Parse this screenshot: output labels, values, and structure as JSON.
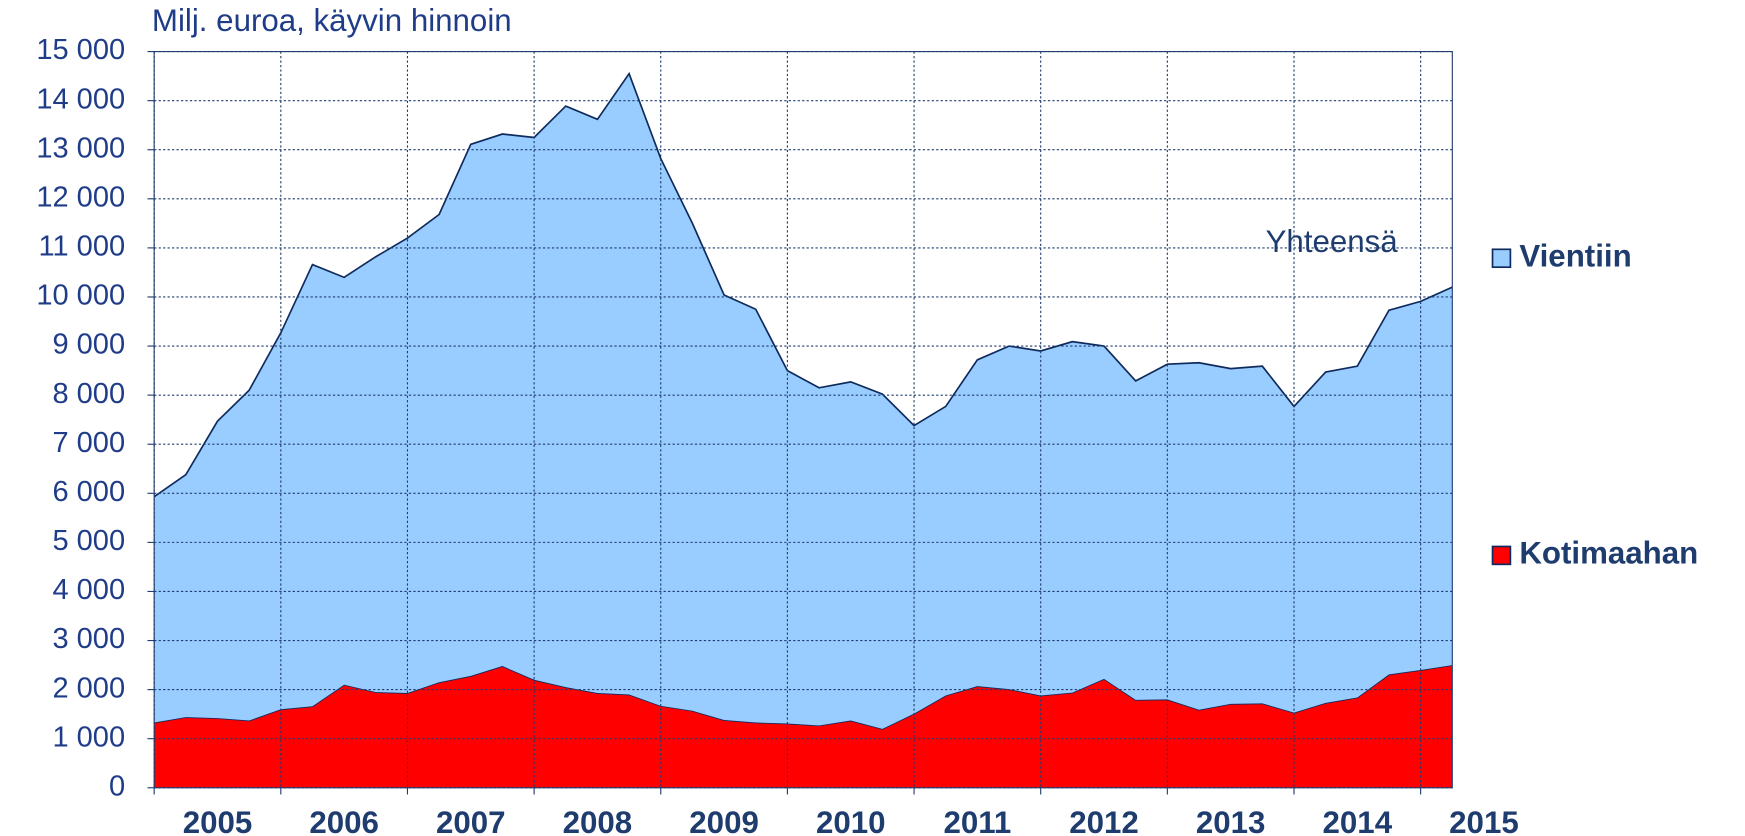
{
  "chart_data": {
    "type": "stacked_area",
    "y_axis_label": "Milj. euroa, käyvin hinnoin",
    "annotation": "Yhteensä",
    "x": [
      2005,
      2005.25,
      2005.5,
      2005.75,
      2006,
      2006.25,
      2006.5,
      2006.75,
      2007,
      2007.25,
      2007.5,
      2007.75,
      2008,
      2008.25,
      2008.5,
      2008.75,
      2009,
      2009.25,
      2009.5,
      2009.75,
      2010,
      2010.25,
      2010.5,
      2010.75,
      2011,
      2011.25,
      2011.5,
      2011.75,
      2012,
      2012.25,
      2012.5,
      2012.75,
      2013,
      2013.25,
      2013.5,
      2013.75,
      2014,
      2014.25,
      2014.5,
      2014.75,
      2015,
      2015.25
    ],
    "series": [
      {
        "name": "Kotimaahan",
        "color": "#ff0000",
        "values": [
          1330,
          1440,
          1420,
          1370,
          1600,
          1660,
          2100,
          1950,
          1930,
          2150,
          2280,
          2480,
          2200,
          2050,
          1930,
          1900,
          1670,
          1570,
          1380,
          1330,
          1310,
          1270,
          1370,
          1200,
          1510,
          1880,
          2070,
          2010,
          1880,
          1940,
          2220,
          1790,
          1800,
          1590,
          1710,
          1720,
          1530,
          1730,
          1840,
          2310,
          2400,
          2500
        ]
      },
      {
        "name": "Vientiin",
        "color": "#99ccff",
        "values": [
          4600,
          4940,
          6050,
          6730,
          7670,
          9000,
          8300,
          8870,
          9270,
          9530,
          10830,
          10840,
          11050,
          11840,
          11690,
          12650,
          11150,
          9930,
          8660,
          8420,
          7190,
          6880,
          6900,
          6820,
          5870,
          5890,
          6650,
          6990,
          7020,
          7150,
          6780,
          6500,
          6830,
          7070,
          6830,
          6870,
          6240,
          6740,
          6750,
          7420,
          7510,
          7700
        ]
      }
    ],
    "xlim": [
      2005,
      2015.25
    ],
    "xticks": [
      2005,
      2006,
      2007,
      2008,
      2009,
      2010,
      2011,
      2012,
      2013,
      2014,
      2015
    ],
    "xtick_labels": [
      {
        "value": 2005.5,
        "label": "2005"
      },
      {
        "value": 2006.5,
        "label": "2006"
      },
      {
        "value": 2007.5,
        "label": "2007"
      },
      {
        "value": 2008.5,
        "label": "2008"
      },
      {
        "value": 2009.5,
        "label": "2009"
      },
      {
        "value": 2010.5,
        "label": "2010"
      },
      {
        "value": 2011.5,
        "label": "2011"
      },
      {
        "value": 2012.5,
        "label": "2012"
      },
      {
        "value": 2013.5,
        "label": "2013"
      },
      {
        "value": 2014.5,
        "label": "2014"
      },
      {
        "value": 2015.5,
        "label": "2015"
      }
    ],
    "ylim": [
      0,
      15000
    ],
    "yticks": [
      0,
      {
        "value": 1000,
        "label": "1 000"
      },
      {
        "value": 2000,
        "label": "2 000"
      },
      {
        "value": 3000,
        "label": "3 000"
      },
      {
        "value": 4000,
        "label": "4 000"
      },
      {
        "value": 5000,
        "label": "5 000"
      },
      {
        "value": 6000,
        "label": "6 000"
      },
      {
        "value": 7000,
        "label": "7 000"
      },
      {
        "value": 8000,
        "label": "8 000"
      },
      {
        "value": 9000,
        "label": "9 000"
      },
      {
        "value": 10000,
        "label": "10 000"
      },
      {
        "value": 11000,
        "label": "11 000"
      },
      {
        "value": 12000,
        "label": "12 000"
      },
      {
        "value": 13000,
        "label": "13 000"
      },
      {
        "value": 14000,
        "label": "14 000"
      },
      {
        "value": 15000,
        "label": "15 000"
      }
    ],
    "grid": true,
    "legend": "right"
  }
}
